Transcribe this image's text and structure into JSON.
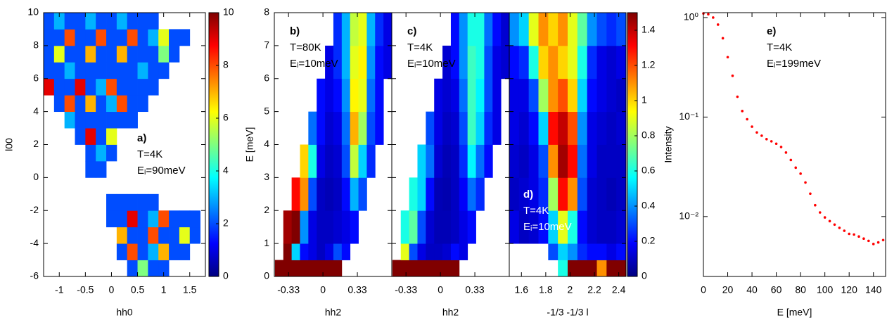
{
  "chart_data": [
    {
      "type": "heatmap",
      "xlabel": "hh0",
      "ylabel": "l00",
      "xlim": [
        -1.3,
        1.8
      ],
      "ylim": [
        -6,
        10
      ],
      "xticks": [
        -1,
        -0.5,
        0,
        0.5,
        1,
        1.5
      ],
      "yticks": [
        -6,
        -4,
        -2,
        0,
        2,
        4,
        6,
        8,
        10
      ],
      "colormap": "jet",
      "clim": [
        0,
        10
      ],
      "cticks": [
        0,
        2,
        4,
        6,
        8,
        10
      ],
      "annotations": [
        "a)",
        "T=4K",
        "Eᵢ=90meV"
      ],
      "annotation_color": "#000000",
      "x_edges": [
        -1.3,
        -1.1,
        -0.9,
        -0.7,
        -0.5,
        -0.3,
        -0.1,
        0.1,
        0.3,
        0.5,
        0.7,
        0.9,
        1.1,
        1.3,
        1.5,
        1.7
      ],
      "y_edges": [
        -6,
        -5,
        -4,
        -3,
        -2,
        -1,
        0,
        1,
        2,
        3,
        4,
        5,
        6,
        7,
        8,
        9,
        10
      ],
      "z": [
        [
          null,
          null,
          null,
          null,
          null,
          null,
          null,
          null,
          2,
          5,
          2,
          2,
          null,
          null,
          null
        ],
        [
          null,
          null,
          null,
          null,
          null,
          null,
          null,
          2,
          8,
          2,
          3,
          7,
          2,
          2,
          null
        ],
        [
          null,
          null,
          null,
          null,
          null,
          null,
          null,
          7,
          2,
          2,
          8,
          2,
          2,
          6,
          2
        ],
        [
          null,
          null,
          null,
          null,
          null,
          null,
          2,
          2,
          9,
          2,
          3,
          8,
          2,
          2,
          2
        ],
        [
          null,
          null,
          null,
          null,
          null,
          null,
          2,
          2,
          2,
          2,
          2,
          null,
          null,
          null,
          null
        ],
        [
          null,
          null,
          null,
          null,
          null,
          null,
          null,
          null,
          null,
          null,
          null,
          null,
          null,
          null,
          null
        ],
        [
          null,
          null,
          null,
          null,
          2,
          2,
          null,
          null,
          null,
          null,
          null,
          null,
          null,
          null,
          null
        ],
        [
          null,
          null,
          null,
          null,
          2,
          3,
          2,
          null,
          null,
          null,
          null,
          null,
          null,
          null,
          null
        ],
        [
          null,
          null,
          null,
          2,
          9,
          2,
          6,
          null,
          null,
          null,
          null,
          null,
          null,
          null,
          null
        ],
        [
          null,
          null,
          3,
          2,
          2,
          2,
          2,
          2,
          2,
          null,
          null,
          null,
          null,
          null,
          null
        ],
        [
          null,
          2,
          8,
          2,
          7,
          2,
          3,
          8,
          2,
          2,
          null,
          null,
          null,
          null,
          null
        ],
        [
          9,
          2,
          2,
          9,
          2,
          3,
          8,
          2,
          2,
          2,
          2,
          null,
          null,
          null,
          null
        ],
        [
          2,
          2,
          3,
          2,
          2,
          2,
          2,
          2,
          2,
          3,
          2,
          2,
          null,
          null,
          null
        ],
        [
          2,
          6,
          2,
          2,
          7,
          2,
          2,
          7,
          2,
          2,
          2,
          5,
          2,
          null,
          null
        ],
        [
          2,
          2,
          8,
          2,
          2,
          8,
          2,
          2,
          8,
          2,
          3,
          6,
          2,
          2,
          null
        ],
        [
          2,
          3,
          2,
          2,
          3,
          2,
          2,
          3,
          2,
          2,
          2,
          null,
          null,
          null,
          null
        ]
      ]
    },
    {
      "type": "heatmap",
      "xlabel": "hh2",
      "ylabel": "E [meV]",
      "xlim": [
        -0.466,
        0.66
      ],
      "ylim": [
        0,
        8
      ],
      "xticks": [
        -0.33,
        0,
        0.33
      ],
      "yticks": [
        0,
        1,
        2,
        3,
        4,
        5,
        6,
        7,
        8
      ],
      "colormap": "jet",
      "clim": [
        0,
        1.5
      ],
      "annotations": [
        "b)",
        "T=80K",
        "Eᵢ=10meV"
      ],
      "annotation_color": "#000000",
      "x_edges": [
        -0.46,
        -0.38,
        -0.3,
        -0.22,
        -0.14,
        -0.06,
        0.02,
        0.1,
        0.18,
        0.26,
        0.34,
        0.42,
        0.5,
        0.58,
        0.66
      ],
      "y_edges": [
        0,
        0.5,
        1,
        2,
        3,
        4,
        5,
        6,
        7,
        8
      ],
      "z": [
        [
          1.5,
          1.5,
          1.5,
          1.5,
          1.5,
          1.5,
          1.5,
          1.5,
          null,
          null,
          null,
          null,
          null,
          null
        ],
        [
          null,
          1.5,
          0.5,
          0.2,
          0.15,
          0.1,
          0.15,
          0.3,
          0.2,
          null,
          null,
          null,
          null,
          null
        ],
        [
          null,
          1.45,
          1.5,
          0.4,
          0.15,
          0.1,
          0.1,
          0.12,
          0.15,
          0.2,
          null,
          null,
          null,
          null
        ],
        [
          null,
          null,
          1.3,
          1.1,
          0.3,
          0.1,
          0.08,
          0.1,
          0.2,
          0.45,
          0.3,
          null,
          null,
          null
        ],
        [
          null,
          null,
          null,
          1.0,
          0.6,
          0.15,
          0.1,
          0.12,
          0.3,
          0.85,
          0.5,
          0.25,
          null,
          null
        ],
        [
          null,
          null,
          null,
          null,
          0.35,
          0.2,
          0.12,
          0.15,
          0.35,
          1.05,
          0.8,
          0.3,
          0.2,
          null
        ],
        [
          null,
          null,
          null,
          null,
          null,
          0.2,
          0.15,
          0.2,
          0.4,
          0.95,
          0.9,
          0.35,
          0.2,
          null
        ],
        [
          null,
          null,
          null,
          null,
          null,
          null,
          0.15,
          0.25,
          0.45,
          0.9,
          0.95,
          0.4,
          0.2,
          0.15
        ],
        [
          null,
          null,
          null,
          null,
          null,
          null,
          null,
          0.25,
          0.45,
          0.85,
          0.9,
          0.45,
          0.25,
          0.15
        ]
      ]
    },
    {
      "type": "heatmap",
      "xlabel": "hh2",
      "xlim": [
        -0.466,
        0.66
      ],
      "ylim": [
        0,
        8
      ],
      "xticks": [
        -0.33,
        0,
        0.33
      ],
      "yticks": [
        0,
        1,
        2,
        3,
        4,
        5,
        6,
        7,
        8
      ],
      "colormap": "jet",
      "clim": [
        0,
        1.5
      ],
      "annotations": [
        "c)",
        "T=4K",
        "Eᵢ=10meV"
      ],
      "annotation_color": "#000000",
      "x_edges": [
        -0.46,
        -0.38,
        -0.3,
        -0.22,
        -0.14,
        -0.06,
        0.02,
        0.1,
        0.18,
        0.26,
        0.34,
        0.42,
        0.5,
        0.58,
        0.66
      ],
      "y_edges": [
        0,
        0.5,
        1,
        2,
        3,
        4,
        5,
        6,
        7,
        8
      ],
      "z": [
        [
          1.5,
          1.5,
          1.5,
          1.5,
          1.5,
          1.5,
          1.5,
          1.5,
          null,
          null,
          null,
          null,
          null,
          null
        ],
        [
          null,
          0.9,
          0.3,
          0.15,
          0.1,
          0.1,
          0.12,
          0.2,
          0.15,
          null,
          null,
          null,
          null,
          null
        ],
        [
          null,
          0.6,
          0.7,
          0.3,
          0.12,
          0.08,
          0.08,
          0.1,
          0.15,
          0.2,
          null,
          null,
          null,
          null
        ],
        [
          null,
          null,
          0.6,
          0.5,
          0.2,
          0.08,
          0.07,
          0.1,
          0.18,
          0.35,
          0.25,
          null,
          null,
          null
        ],
        [
          null,
          null,
          null,
          0.5,
          0.35,
          0.12,
          0.08,
          0.1,
          0.25,
          0.55,
          0.35,
          0.2,
          null,
          null
        ],
        [
          null,
          null,
          null,
          null,
          0.3,
          0.15,
          0.1,
          0.12,
          0.3,
          0.65,
          0.5,
          0.25,
          0.15,
          null
        ],
        [
          null,
          null,
          null,
          null,
          null,
          0.15,
          0.12,
          0.15,
          0.35,
          0.65,
          0.55,
          0.3,
          0.15,
          null
        ],
        [
          null,
          null,
          null,
          null,
          null,
          null,
          0.12,
          0.2,
          0.4,
          0.65,
          0.6,
          0.3,
          0.15,
          0.12
        ],
        [
          null,
          null,
          null,
          null,
          null,
          null,
          null,
          0.2,
          0.4,
          0.6,
          0.6,
          0.35,
          0.2,
          0.12
        ]
      ]
    },
    {
      "type": "heatmap",
      "xlabel": "-1/3 -1/3 l",
      "xlim": [
        1.5,
        2.46
      ],
      "ylim": [
        0,
        8
      ],
      "xticks": [
        1.6,
        1.8,
        2,
        2.2,
        2.4
      ],
      "yticks": [
        0,
        1,
        2,
        3,
        4,
        5,
        6,
        7,
        8
      ],
      "colormap": "jet",
      "clim": [
        0,
        1.5
      ],
      "cticks": [
        0,
        0.2,
        0.4,
        0.6,
        0.8,
        1,
        1.2,
        1.4
      ],
      "clabel": "Intensity",
      "annotations": [
        "d)",
        "T=4K",
        "Eᵢ=10meV"
      ],
      "annotation_color": "#ffffff",
      "x_edges": [
        1.5,
        1.58,
        1.66,
        1.74,
        1.82,
        1.9,
        1.98,
        2.06,
        2.14,
        2.22,
        2.3,
        2.38,
        2.46
      ],
      "y_edges": [
        0,
        0.5,
        1,
        2,
        3,
        4,
        5,
        6,
        7,
        8
      ],
      "z": [
        [
          null,
          null,
          null,
          null,
          null,
          0.6,
          1.5,
          1.5,
          1.5,
          1.1,
          1.5,
          1.5
        ],
        [
          null,
          null,
          null,
          null,
          0.3,
          0.5,
          0.4,
          0.25,
          0.2,
          0.2,
          0.15,
          0.2
        ],
        [
          0.15,
          0.1,
          0.12,
          0.2,
          0.5,
          0.9,
          0.6,
          0.2,
          0.12,
          0.1,
          0.1,
          0.12
        ],
        [
          0.1,
          0.12,
          0.15,
          0.25,
          0.8,
          1.3,
          1.1,
          0.3,
          0.12,
          0.1,
          0.08,
          0.1
        ],
        [
          0.12,
          0.1,
          0.15,
          0.3,
          1.1,
          1.45,
          1.3,
          0.35,
          0.15,
          0.1,
          0.1,
          0.1
        ],
        [
          0.15,
          0.12,
          0.2,
          0.5,
          1.3,
          1.4,
          1.2,
          0.4,
          0.15,
          0.12,
          0.1,
          0.12
        ],
        [
          0.15,
          0.15,
          0.3,
          0.8,
          1.1,
          1.2,
          1.0,
          0.5,
          0.2,
          0.15,
          0.12,
          0.1
        ],
        [
          0.2,
          0.25,
          0.6,
          1.0,
          1.1,
          1.0,
          0.9,
          0.6,
          0.25,
          0.15,
          0.12,
          0.15
        ],
        [
          0.4,
          0.5,
          0.9,
          1.1,
          1.0,
          1.1,
          0.9,
          0.7,
          0.4,
          0.3,
          0.25,
          0.3
        ]
      ]
    },
    {
      "type": "scatter",
      "xlabel": "E [meV]",
      "log_y": true,
      "color": "#ff0000",
      "xlim": [
        0,
        150
      ],
      "ylim": [
        0.0025,
        1.12
      ],
      "xticks": [
        0,
        20,
        40,
        60,
        80,
        100,
        120,
        140
      ],
      "yticks": [
        {
          "value": 0.01,
          "label": "10⁻²"
        },
        {
          "value": 0.1,
          "label": "10⁻¹"
        },
        {
          "value": 1,
          "label": "10⁰"
        }
      ],
      "annotations": [
        "e)",
        "T=4K",
        "Eᵢ=199meV"
      ],
      "annotation_color": "#000000",
      "x": [
        0,
        4,
        8,
        12,
        16,
        20,
        24,
        28,
        32,
        36,
        40,
        44,
        48,
        52,
        56,
        60,
        64,
        68,
        72,
        76,
        80,
        84,
        88,
        92,
        96,
        100,
        104,
        108,
        112,
        116,
        120,
        124,
        128,
        132,
        136,
        140,
        144,
        148
      ],
      "values": [
        1.1,
        1.08,
        1.0,
        0.85,
        0.62,
        0.4,
        0.26,
        0.16,
        0.115,
        0.095,
        0.08,
        0.07,
        0.065,
        0.06,
        0.057,
        0.054,
        0.05,
        0.044,
        0.037,
        0.031,
        0.027,
        0.022,
        0.017,
        0.013,
        0.011,
        0.0098,
        0.009,
        0.0083,
        0.0077,
        0.0072,
        0.0067,
        0.0066,
        0.0063,
        0.006,
        0.0057,
        0.0053,
        0.0055,
        0.0058
      ]
    }
  ]
}
